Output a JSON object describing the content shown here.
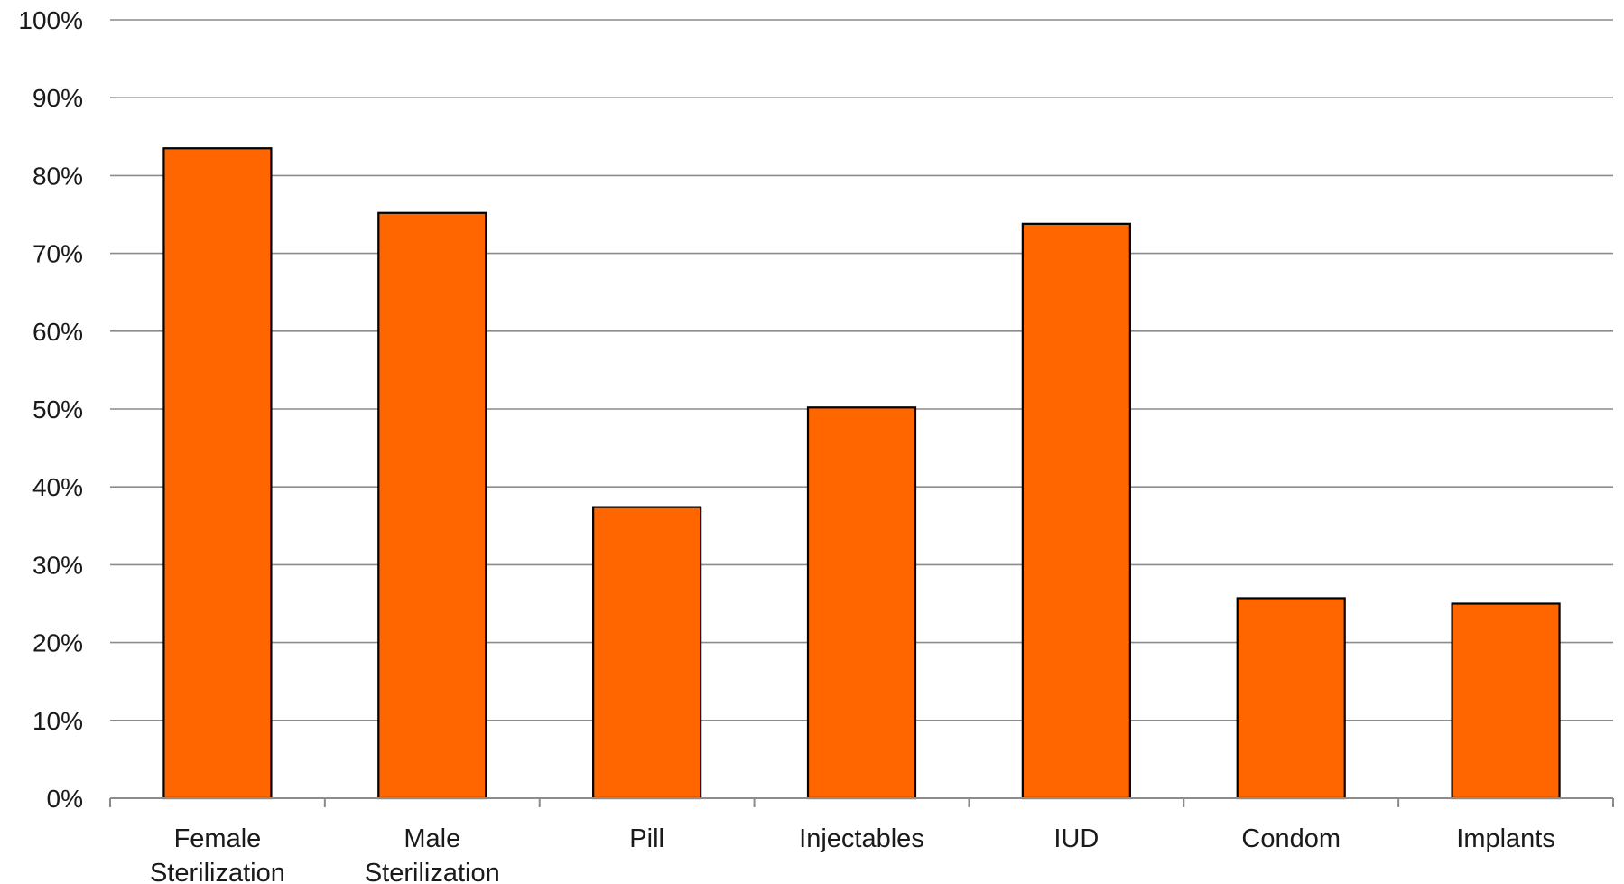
{
  "chart_data": {
    "type": "bar",
    "title": "",
    "xlabel": "",
    "ylabel": "",
    "categories": [
      [
        "Female",
        "Sterilization"
      ],
      [
        "Male",
        "Sterilization"
      ],
      [
        "Pill"
      ],
      [
        "Injectables"
      ],
      [
        "IUD"
      ],
      [
        "Condom"
      ],
      [
        "Implants"
      ]
    ],
    "values": [
      83.5,
      75.2,
      37.4,
      50.2,
      73.8,
      25.7,
      25.0
    ],
    "ylim": [
      0,
      100
    ],
    "yticks": [
      0,
      10,
      20,
      30,
      40,
      50,
      60,
      70,
      80,
      90,
      100
    ],
    "ytick_labels": [
      "0%",
      "10%",
      "20%",
      "30%",
      "40%",
      "50%",
      "60%",
      "70%",
      "80%",
      "90%",
      "100%"
    ],
    "grid": true,
    "legend": "none",
    "colors": {
      "bar": "#ff6600",
      "bar_edge": "#000000",
      "grid": "#8c8c8c",
      "axis": "#8c8c8c"
    }
  }
}
